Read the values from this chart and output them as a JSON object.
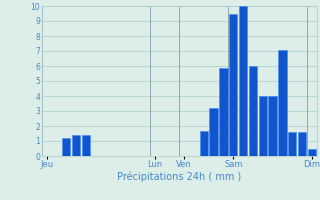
{
  "xlabel": "Précipitations 24h ( mm )",
  "ylim": [
    0,
    10
  ],
  "yticks": [
    0,
    1,
    2,
    3,
    4,
    5,
    6,
    7,
    8,
    9,
    10
  ],
  "background_color": "#ddeee8",
  "bar_color": "#1155cc",
  "bar_edge_color": "#4488ff",
  "grid_color": "#aacccc",
  "vgrid_color": "#8aabab",
  "text_color": "#4488cc",
  "num_bars": 28,
  "bar_values": [
    0,
    0,
    1.2,
    1.4,
    1.4,
    0,
    0,
    0,
    0,
    0,
    0,
    0,
    0,
    0,
    0,
    0,
    1.7,
    3.2,
    5.9,
    9.5,
    10.0,
    6.0,
    4.0,
    4.0,
    7.1,
    1.6,
    1.6,
    0.5
  ],
  "day_labels": [
    "Jeu",
    "Lun",
    "Ven",
    "Sam",
    "Dim"
  ],
  "day_positions": [
    0,
    11,
    14,
    19,
    27
  ],
  "day_line_positions": [
    -0.5,
    10.5,
    13.5,
    18.5,
    26.5
  ]
}
